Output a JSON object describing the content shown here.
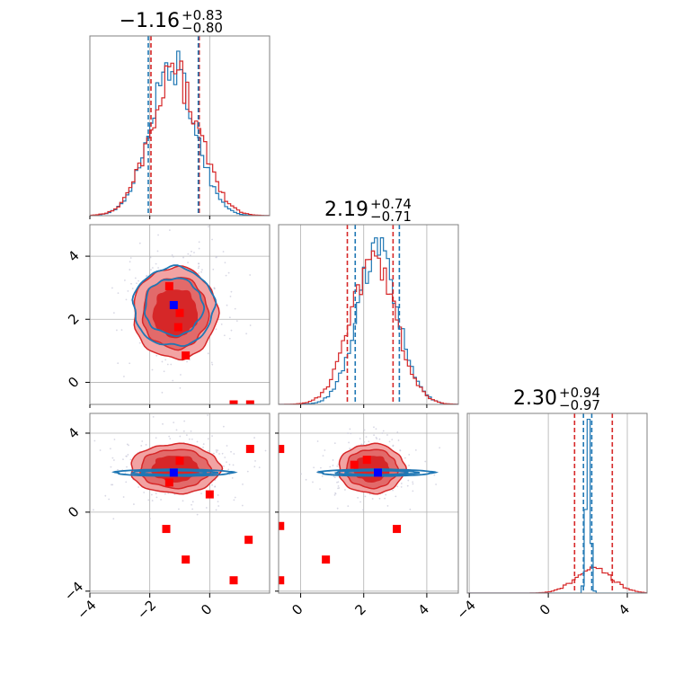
{
  "figure": {
    "type": "corner-plot",
    "colors": {
      "red": "#d62728",
      "blue": "#1f77b4",
      "red_fill_outer": "#f2a3a3",
      "red_fill_mid": "#e26a6a",
      "red_fill_inner": "#d62728",
      "truth_blue": "#0000ff",
      "truth_red": "#ff0000",
      "grid": "#b0b0b0"
    }
  },
  "chart_data": {
    "type": "corner",
    "parameters": [
      {
        "index": 0,
        "title": {
          "main": "−1.16",
          "sup": "+0.83",
          "sub": "−0.80"
        },
        "range": [
          -4,
          2
        ],
        "ticks": [
          -4,
          -2,
          0
        ],
        "tick_labels": [
          "−4",
          "−2",
          "0"
        ],
        "quantiles": {
          "red": [
            -1.96,
            -0.35
          ],
          "blue": [
            -2.05,
            -0.38
          ]
        },
        "hist_center": -1.16,
        "hist_width": 0.82
      },
      {
        "index": 1,
        "title": {
          "main": "2.19",
          "sup": "+0.74",
          "sub": "−0.71"
        },
        "range": [
          -0.7,
          5.0
        ],
        "ticks": [
          0,
          2,
          4
        ],
        "tick_labels": [
          "0",
          "2",
          "4"
        ],
        "quantiles": {
          "red": [
            1.48,
            2.93
          ],
          "blue": [
            1.73,
            3.13
          ]
        },
        "hist_center": 2.3,
        "hist_width": 0.72
      },
      {
        "index": 2,
        "title": {
          "main": "2.30",
          "sup": "+0.94",
          "sub": "−0.97"
        },
        "range": [
          -4.1,
          5.0
        ],
        "ticks": [
          -4,
          0,
          4
        ],
        "tick_labels": [
          "−4",
          "0",
          "4"
        ],
        "quantiles": {
          "red": [
            1.33,
            3.24
          ],
          "blue": [
            1.78,
            2.2
          ]
        },
        "hist_center": 2.3,
        "hist_width": 0.95
      }
    ],
    "truth_blue": [
      -1.2,
      2.45,
      2.0
    ],
    "red_markers": {
      "p1_vs_p0": [
        [
          -1.35,
          3.05
        ],
        [
          -1.0,
          2.2
        ],
        [
          -1.05,
          1.75
        ],
        [
          -0.8,
          0.85
        ],
        [
          0.8,
          -0.7
        ],
        [
          1.35,
          -0.7
        ]
      ],
      "p2_vs_p0": [
        [
          1.35,
          3.2
        ],
        [
          -1.0,
          2.6
        ],
        [
          -1.35,
          1.5
        ],
        [
          0.0,
          0.9
        ],
        [
          -1.45,
          -0.85
        ],
        [
          -0.8,
          -2.4
        ],
        [
          1.3,
          -1.4
        ],
        [
          0.8,
          -3.45
        ]
      ],
      "p2_vs_p1": [
        [
          -0.65,
          3.2
        ],
        [
          1.7,
          2.4
        ],
        [
          2.1,
          2.65
        ],
        [
          -0.65,
          -0.7
        ],
        [
          3.05,
          -0.85
        ],
        [
          0.8,
          -2.4
        ],
        [
          -0.65,
          -3.45
        ]
      ]
    },
    "contours": {
      "red_2d_p1_vs_p0": {
        "cx": -1.15,
        "cy": 2.2,
        "rx": 1.4,
        "ry": 1.45
      },
      "red_2d_p2_vs_p0": {
        "cx": -1.15,
        "cy": 2.2,
        "rx": 1.5,
        "ry": 1.25
      },
      "red_2d_p2_vs_p1": {
        "cx": 2.25,
        "cy": 2.2,
        "rx": 1.05,
        "ry": 1.25
      },
      "blue_2d_p1_vs_p0": {
        "cx": -1.2,
        "cy": 2.4,
        "rx": 1.35,
        "ry": 1.25
      },
      "blue_2d_p2_vs_p0": {
        "cx": -1.2,
        "cy": 2.0,
        "rx": 1.95,
        "ry": 0.17
      },
      "blue_2d_p2_vs_p1": {
        "cx": 2.4,
        "cy": 2.0,
        "rx": 1.8,
        "ry": 0.17
      }
    }
  }
}
